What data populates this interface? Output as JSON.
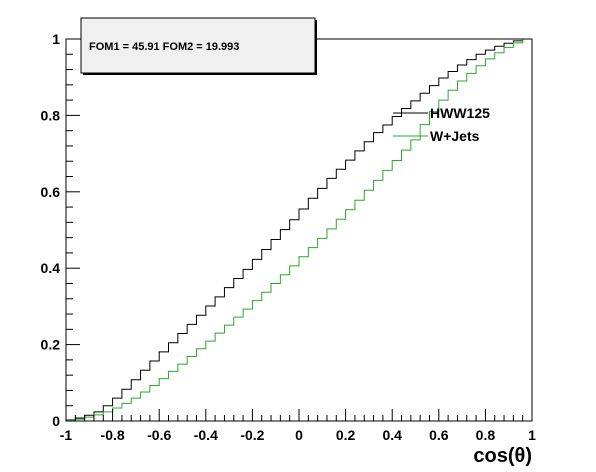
{
  "chart_data": {
    "type": "line",
    "xlabel": "cos(θ)",
    "ylabel": "",
    "xlim": [
      -1,
      1
    ],
    "ylim": [
      0,
      1.0
    ],
    "x_ticks": [
      "-1",
      "-0.8",
      "-0.6",
      "-0.4",
      "-0.2",
      "0",
      "0.2",
      "0.4",
      "0.6",
      "0.8",
      "1"
    ],
    "y_ticks": [
      "0",
      "0.2",
      "0.4",
      "0.6",
      "0.8",
      "1"
    ],
    "annotation": "FOM1 = 45.91 FOM2 = 19.993",
    "legend_position": "top-right",
    "grid": false,
    "bin_edges": [
      -1.0,
      -0.96,
      -0.92,
      -0.88,
      -0.84,
      -0.8,
      -0.76,
      -0.72,
      -0.68,
      -0.64,
      -0.6,
      -0.56,
      -0.52,
      -0.48,
      -0.44,
      -0.4,
      -0.36,
      -0.32,
      -0.28,
      -0.24,
      -0.2,
      -0.16,
      -0.12,
      -0.08,
      -0.04,
      0.0,
      0.04,
      0.08,
      0.12,
      0.16,
      0.2,
      0.24,
      0.28,
      0.32,
      0.36,
      0.4,
      0.44,
      0.48,
      0.52,
      0.56,
      0.6,
      0.64,
      0.68,
      0.72,
      0.76,
      0.8,
      0.84,
      0.88,
      0.92,
      0.96,
      1.0
    ],
    "series": [
      {
        "name": "HWW125",
        "color": "#000000",
        "values": [
          0.003,
          0.008,
          0.015,
          0.024,
          0.04,
          0.06,
          0.083,
          0.108,
          0.133,
          0.157,
          0.181,
          0.205,
          0.229,
          0.253,
          0.277,
          0.301,
          0.325,
          0.349,
          0.373,
          0.397,
          0.423,
          0.449,
          0.475,
          0.501,
          0.527,
          0.555,
          0.583,
          0.609,
          0.635,
          0.659,
          0.683,
          0.707,
          0.731,
          0.755,
          0.775,
          0.797,
          0.818,
          0.838,
          0.858,
          0.878,
          0.898,
          0.915,
          0.932,
          0.946,
          0.96,
          0.971,
          0.981,
          0.989,
          0.995,
          1.0
        ]
      },
      {
        "name": "W+Jets",
        "color": "#2aa82a",
        "values": [
          0.002,
          0.005,
          0.01,
          0.016,
          0.024,
          0.034,
          0.046,
          0.06,
          0.076,
          0.093,
          0.111,
          0.13,
          0.149,
          0.169,
          0.189,
          0.209,
          0.23,
          0.251,
          0.272,
          0.293,
          0.315,
          0.337,
          0.36,
          0.383,
          0.406,
          0.43,
          0.454,
          0.478,
          0.503,
          0.528,
          0.553,
          0.578,
          0.604,
          0.63,
          0.656,
          0.682,
          0.709,
          0.736,
          0.776,
          0.81,
          0.84,
          0.866,
          0.89,
          0.91,
          0.93,
          0.948,
          0.964,
          0.978,
          0.99,
          1.0
        ]
      }
    ]
  }
}
